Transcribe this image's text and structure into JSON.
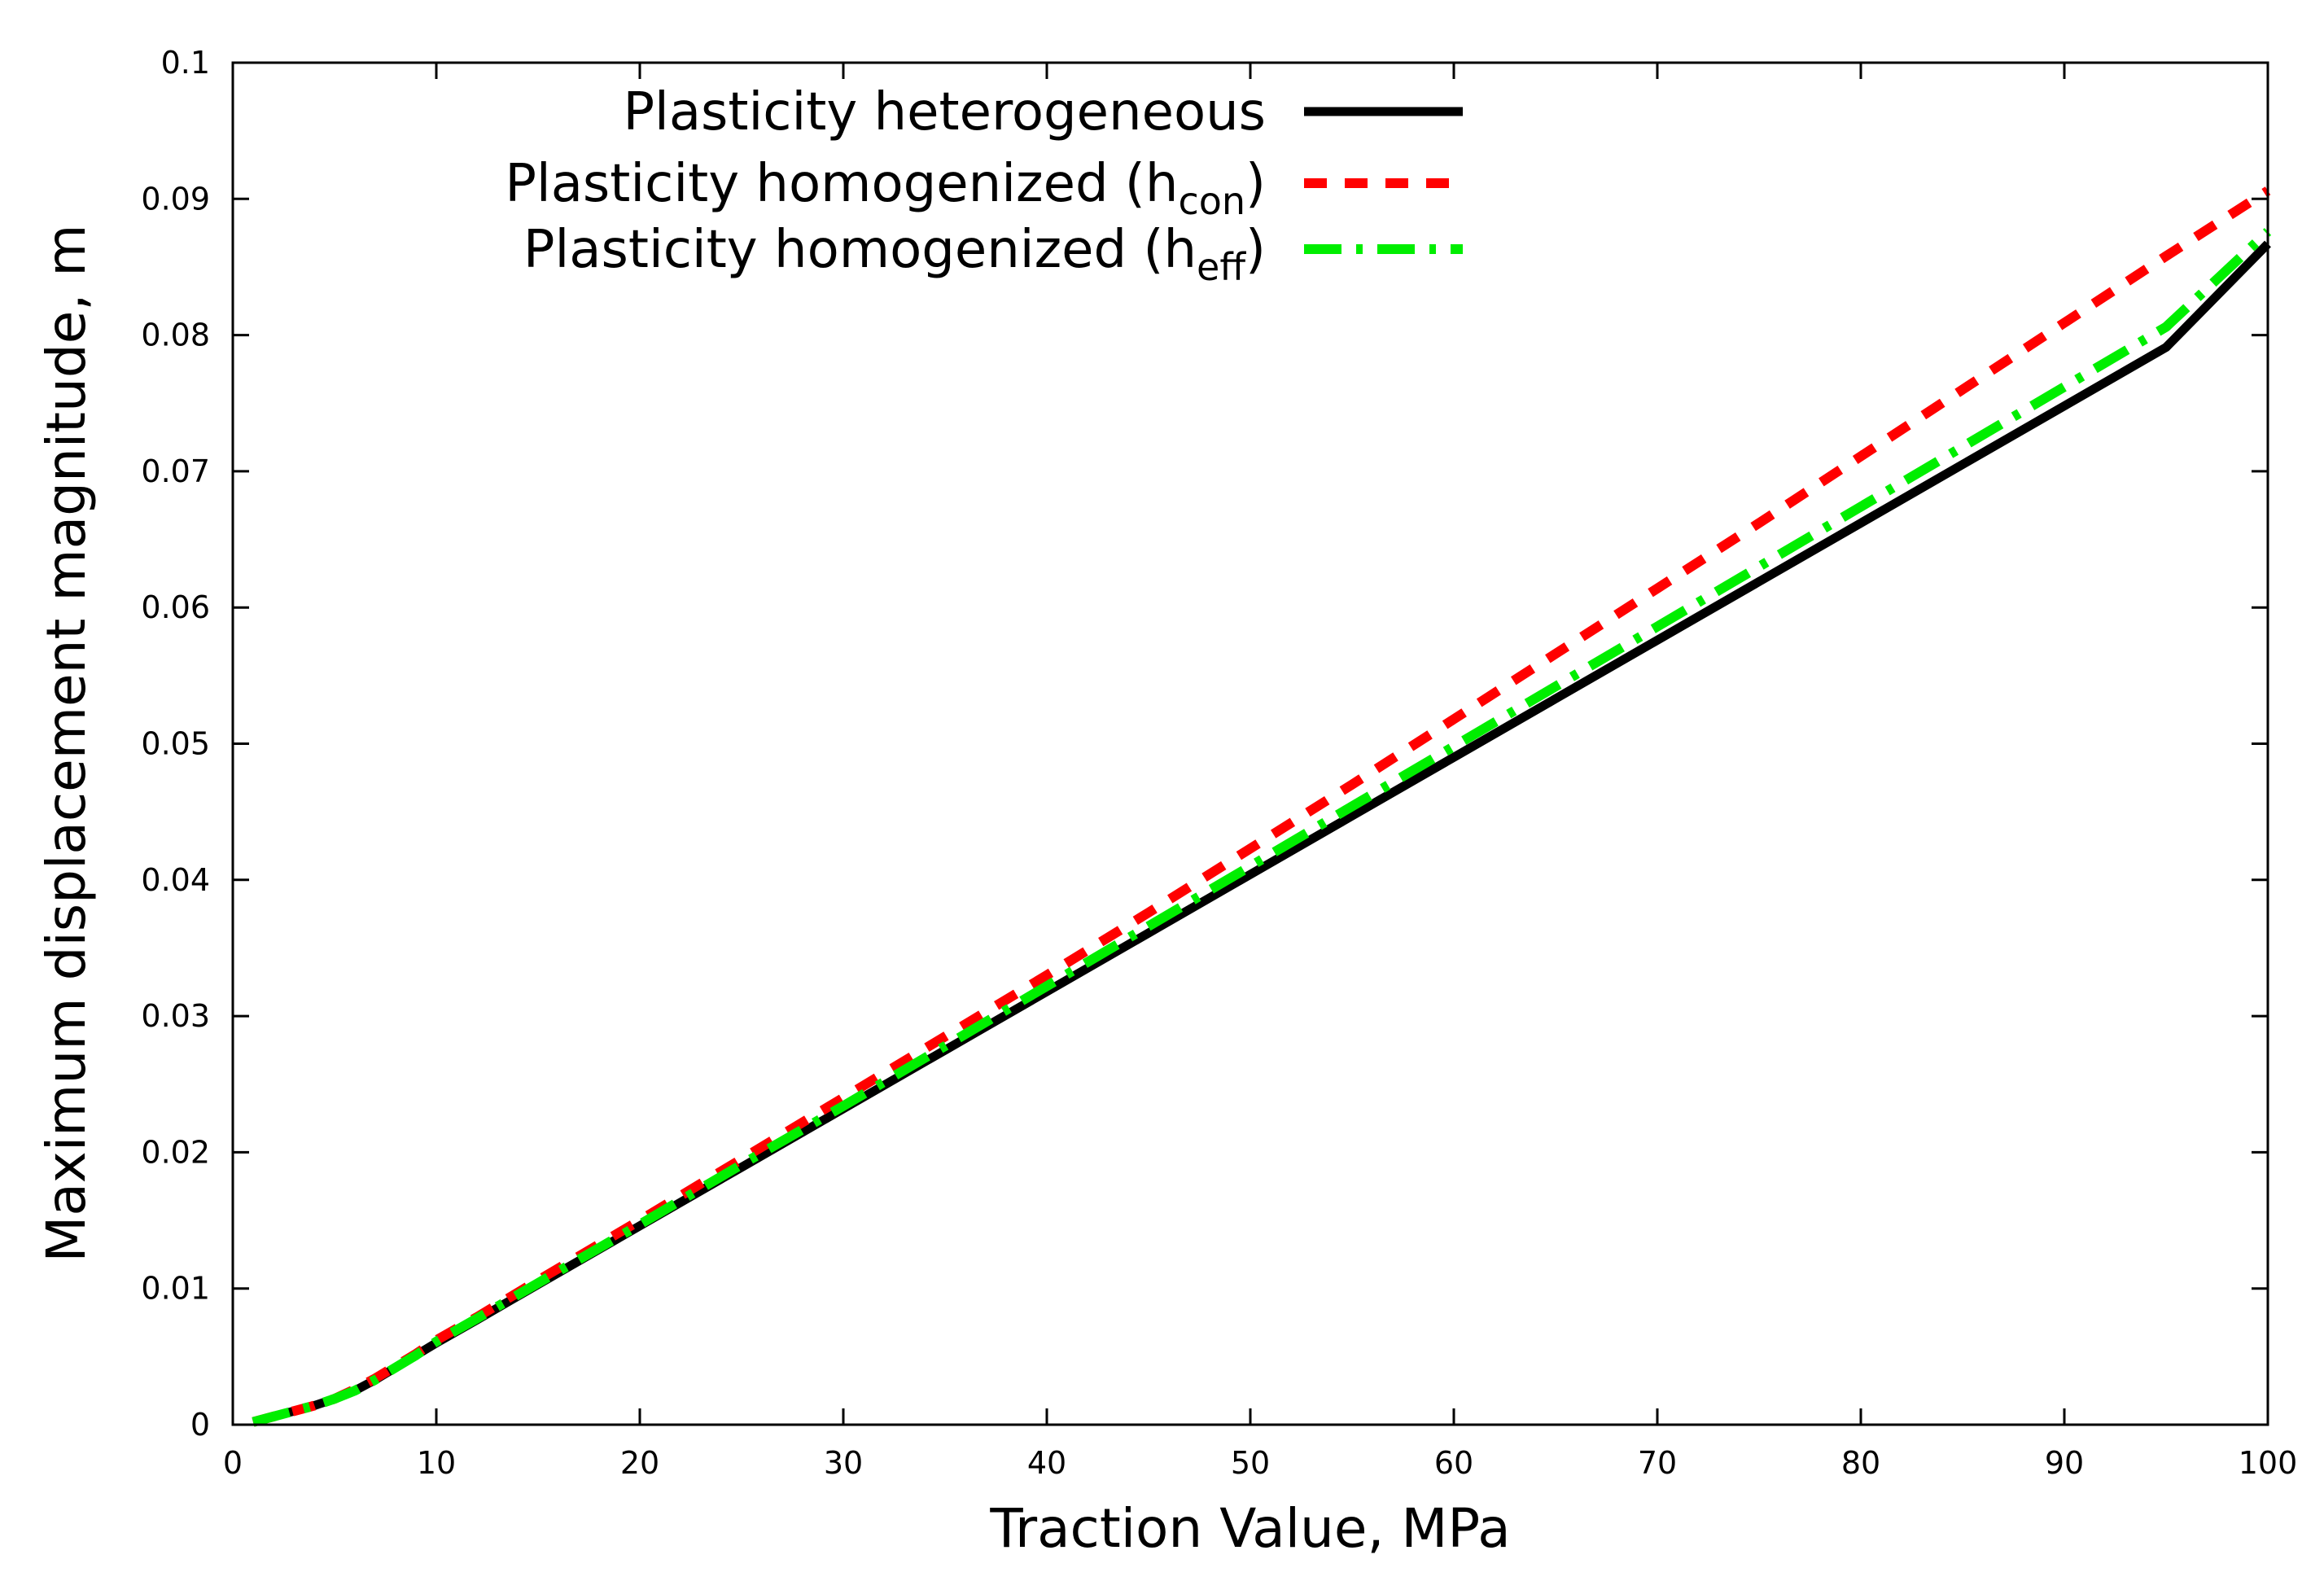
{
  "chart_data": {
    "type": "line",
    "title": "",
    "xlabel": "Traction Value, MPa",
    "ylabel": "Maximum displacement magnitude, m",
    "xlim": [
      0,
      100
    ],
    "ylim": [
      0,
      0.1
    ],
    "xticks": [
      0,
      10,
      20,
      30,
      40,
      50,
      60,
      70,
      80,
      90,
      100
    ],
    "yticks": [
      0,
      0.01,
      0.02,
      0.03,
      0.04,
      0.05,
      0.06,
      0.07,
      0.08,
      0.09,
      0.1
    ],
    "xtick_labels": [
      "0",
      "10",
      "20",
      "30",
      "40",
      "50",
      "60",
      "70",
      "80",
      "90",
      "100"
    ],
    "ytick_labels": [
      "0",
      "0.01",
      "0.02",
      "0.03",
      "0.04",
      "0.05",
      "0.06",
      "0.07",
      "0.08",
      "0.09",
      "0.1"
    ],
    "grid": false,
    "legend_position": "top-left",
    "series": [
      {
        "name": "Plasticity heterogeneous",
        "legend_main": "Plasticity heterogeneous",
        "legend_sub": "",
        "legend_suffix": "",
        "color": "#000000",
        "style": "solid",
        "x": [
          1,
          2,
          3,
          4,
          5,
          6,
          7,
          8,
          9,
          10,
          12,
          15,
          20,
          25,
          30,
          35,
          40,
          45,
          50,
          55,
          60,
          65,
          70,
          75,
          80,
          85,
          90,
          95,
          100
        ],
        "y": [
          0.0002,
          0.0006,
          0.001,
          0.0014,
          0.0019,
          0.0025,
          0.0033,
          0.0042,
          0.0051,
          0.006,
          0.0077,
          0.0103,
          0.0146,
          0.0189,
          0.0232,
          0.0275,
          0.0318,
          0.0361,
          0.0404,
          0.0447,
          0.049,
          0.0533,
          0.0576,
          0.0619,
          0.0662,
          0.0705,
          0.0748,
          0.0791,
          0.0867
        ]
      },
      {
        "name": "Plasticity homogenized (hcon)",
        "legend_main": "Plasticity homogenized (h",
        "legend_sub": "con",
        "legend_suffix": ")",
        "color": "#ff0000",
        "style": "dashed",
        "x": [
          1,
          2,
          3,
          4,
          5,
          6,
          7,
          8,
          9,
          10,
          12,
          15,
          20,
          25,
          30,
          35,
          40,
          45,
          50,
          55,
          60,
          65,
          70,
          75,
          80,
          85,
          90,
          95,
          100
        ],
        "y": [
          0.0002,
          0.0006,
          0.001,
          0.0014,
          0.0019,
          0.0026,
          0.0034,
          0.0043,
          0.0052,
          0.0062,
          0.0079,
          0.0106,
          0.015,
          0.0195,
          0.024,
          0.0285,
          0.033,
          0.0376,
          0.0423,
          0.047,
          0.0518,
          0.0566,
          0.0614,
          0.0662,
          0.0711,
          0.076,
          0.0809,
          0.0858,
          0.0906
        ]
      },
      {
        "name": "Plasticity homogenized (heff)",
        "legend_main": "Plasticity homogenized (h",
        "legend_sub": "eff",
        "legend_suffix": ")",
        "color": "#00ee00",
        "style": "dash-dot",
        "x": [
          1,
          2,
          3,
          4,
          5,
          6,
          7,
          8,
          9,
          10,
          12,
          15,
          20,
          25,
          30,
          35,
          40,
          45,
          50,
          55,
          60,
          65,
          70,
          75,
          80,
          85,
          90,
          95,
          100
        ],
        "y": [
          0.0002,
          0.0006,
          0.001,
          0.0014,
          0.0019,
          0.0025,
          0.0033,
          0.0042,
          0.0051,
          0.0061,
          0.0078,
          0.0104,
          0.0147,
          0.0191,
          0.0234,
          0.0278,
          0.0322,
          0.0366,
          0.041,
          0.0454,
          0.0498,
          0.0542,
          0.0586,
          0.063,
          0.0674,
          0.0718,
          0.0762,
          0.0806,
          0.0876
        ]
      }
    ]
  }
}
